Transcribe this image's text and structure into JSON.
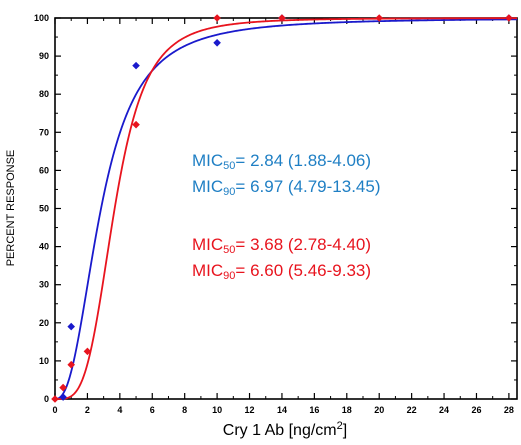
{
  "chart_data": {
    "type": "scatter",
    "title": "",
    "xlabel": "Cry 1 Ab [ng/cm",
    "xlabel_sup": "2",
    "xlabel_end": "]",
    "ylabel": "PERCENT RESPONSE",
    "xlim": [
      0,
      28.5
    ],
    "ylim": [
      0,
      100
    ],
    "xticks": [
      0,
      2,
      4,
      6,
      8,
      10,
      12,
      14,
      16,
      18,
      20,
      22,
      24,
      26,
      28
    ],
    "yticks": [
      0,
      10,
      20,
      30,
      40,
      50,
      60,
      70,
      80,
      90,
      100
    ],
    "grid": false,
    "series": [
      {
        "color": "#1a1acc",
        "marker": "diamond",
        "mic50": 2.84,
        "mic90": 6.97,
        "points": [
          {
            "x": 0.5,
            "y": 0.5
          },
          {
            "x": 1.0,
            "y": 19
          },
          {
            "x": 5.0,
            "y": 87.5
          },
          {
            "x": 10.0,
            "y": 93.5
          },
          {
            "x": 14.0,
            "y": 100
          },
          {
            "x": 28.0,
            "y": 100
          }
        ]
      },
      {
        "color": "#e8141e",
        "marker": "diamond",
        "mic50": 3.68,
        "mic90": 6.6,
        "points": [
          {
            "x": 0.0,
            "y": 0
          },
          {
            "x": 0.5,
            "y": 3
          },
          {
            "x": 1.0,
            "y": 9
          },
          {
            "x": 2.0,
            "y": 12.5
          },
          {
            "x": 5.0,
            "y": 72
          },
          {
            "x": 10.0,
            "y": 100
          },
          {
            "x": 14.0,
            "y": 100
          },
          {
            "x": 20.0,
            "y": 100
          },
          {
            "x": 28.0,
            "y": 100
          }
        ]
      }
    ],
    "annotations": [
      {
        "color": "#1f7fc4",
        "prefix": "MIC",
        "sub": "50",
        "text": "= 2.84 (1.88-4.06)"
      },
      {
        "color": "#1f7fc4",
        "prefix": "MIC",
        "sub": "90",
        "text": "= 6.97 (4.79-13.45)"
      },
      {
        "color": "#e8141e",
        "prefix": "MIC",
        "sub": "50",
        "text": "= 3.68 (2.78-4.40)"
      },
      {
        "color": "#e8141e",
        "prefix": "MIC",
        "sub": "90",
        "text": "= 6.60 (5.46-9.33)"
      }
    ]
  }
}
